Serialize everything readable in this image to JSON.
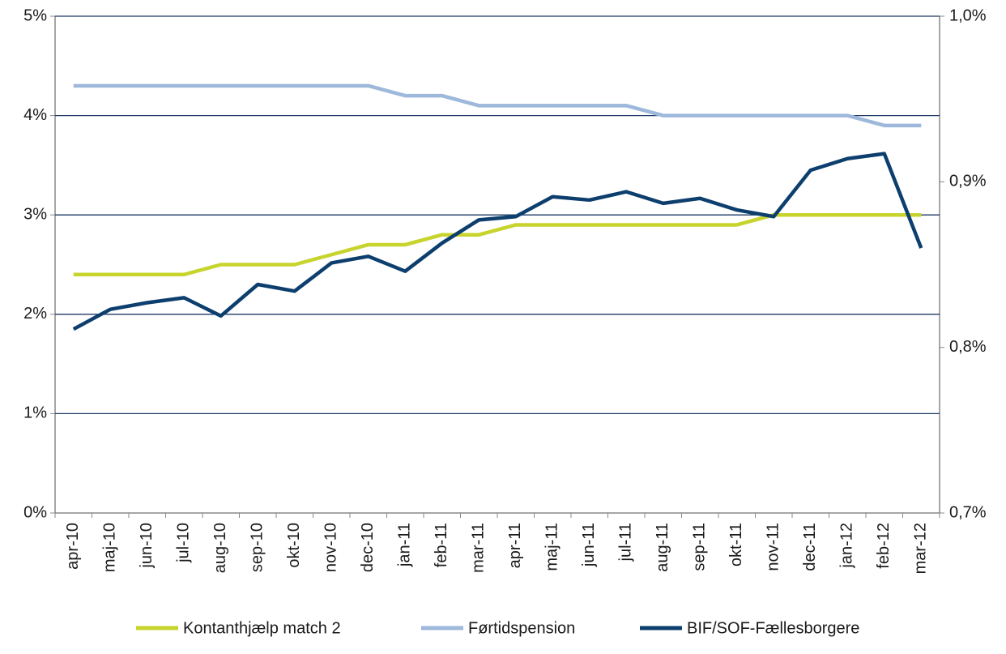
{
  "chart_data": {
    "type": "line",
    "categories": [
      "apr-10",
      "maj-10",
      "jun-10",
      "jul-10",
      "aug-10",
      "sep-10",
      "okt-10",
      "nov-10",
      "dec-10",
      "jan-11",
      "feb-11",
      "mar-11",
      "apr-11",
      "maj-11",
      "jun-11",
      "jul-11",
      "aug-11",
      "sep-11",
      "okt-11",
      "nov-11",
      "dec-11",
      "jan-12",
      "feb-12",
      "mar-12"
    ],
    "series": [
      {
        "name": "Kontanthjælp match 2",
        "color": "#c8d42e",
        "values": [
          2.4,
          2.4,
          2.4,
          2.4,
          2.5,
          2.5,
          2.5,
          2.6,
          2.7,
          2.7,
          2.8,
          2.8,
          2.9,
          2.9,
          2.9,
          2.9,
          2.9,
          2.9,
          2.9,
          3.0,
          3.0,
          3.0,
          3.0,
          3.0
        ]
      },
      {
        "name": "Førtidspension",
        "color": "#9db8da",
        "values": [
          4.3,
          4.3,
          4.3,
          4.3,
          4.3,
          4.3,
          4.3,
          4.3,
          4.3,
          4.2,
          4.2,
          4.1,
          4.1,
          4.1,
          4.1,
          4.1,
          4.0,
          4.0,
          4.0,
          4.0,
          4.0,
          4.0,
          3.9,
          3.9
        ]
      },
      {
        "name": "BIF/SOF-Fællesborgere",
        "color": "#0d3f6e",
        "axis": "y2",
        "values": [
          0.811,
          0.823,
          0.827,
          0.83,
          0.819,
          0.838,
          0.834,
          0.851,
          0.855,
          0.846,
          0.863,
          0.877,
          0.879,
          0.891,
          0.889,
          0.894,
          0.887,
          0.89,
          0.883,
          0.879,
          0.907,
          0.914,
          0.917,
          0.86
        ]
      }
    ],
    "ylim": [
      0,
      5
    ],
    "yticks": [
      {
        "value": 0,
        "label": "0%"
      },
      {
        "value": 1,
        "label": "1%"
      },
      {
        "value": 2,
        "label": "2%"
      },
      {
        "value": 3,
        "label": "3%"
      },
      {
        "value": 4,
        "label": "4%"
      },
      {
        "value": 5,
        "label": "5%"
      }
    ],
    "y2lim": [
      0.7,
      1.0
    ],
    "y2ticks": [
      {
        "value": 0.7,
        "label": "0,7%"
      },
      {
        "value": 0.8,
        "label": "0,8%"
      },
      {
        "value": 0.9,
        "label": "0,9%"
      },
      {
        "value": 1.0,
        "label": "1,0%"
      }
    ],
    "grid": true
  }
}
